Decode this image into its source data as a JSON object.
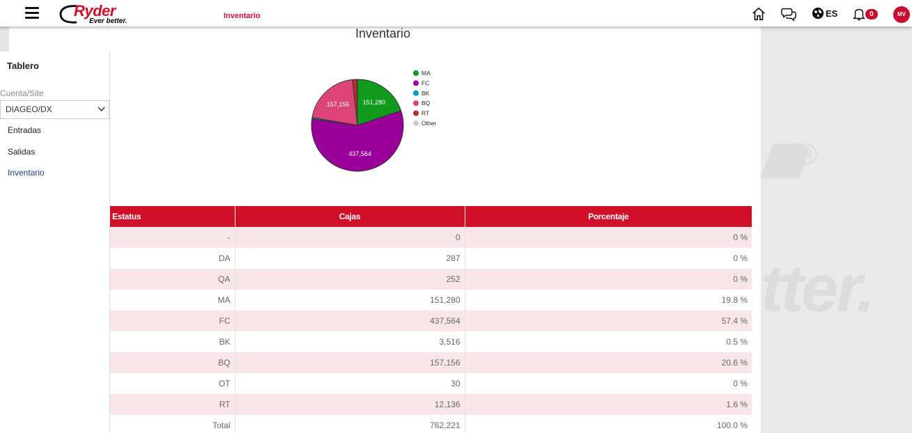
{
  "header": {
    "logo_brand": "Ryder",
    "logo_tagline": "Ever better.",
    "title": "Inventario",
    "lang": "ES",
    "notifications": "0",
    "avatar": "MV"
  },
  "page": {
    "title": "Inventario"
  },
  "sidebar": {
    "title": "Tablero",
    "account_label": "Cuenta/Site",
    "account_value": "DIAGEO/DX",
    "items": [
      {
        "label": "Entradas",
        "active": false
      },
      {
        "label": "Salidas",
        "active": false
      },
      {
        "label": "Inventario",
        "active": true
      }
    ]
  },
  "chart_data": {
    "type": "pie",
    "categories": [
      "MA",
      "FC",
      "BK",
      "BQ",
      "RT",
      "Other"
    ],
    "values": [
      151280,
      437564,
      3516,
      157156,
      12136,
      569
    ],
    "data_labels": [
      "151,280",
      "437,564",
      "",
      "157,156",
      "",
      ""
    ],
    "colors": [
      "#119a1b",
      "#990099",
      "#0099c6",
      "#dd4477",
      "#b82e2e",
      "#cccccc"
    ],
    "legend_position": "right"
  },
  "table": {
    "columns": [
      "Estatus",
      "Cajas",
      "Porcentaje"
    ],
    "rows": [
      {
        "status": "-",
        "cajas": "0",
        "pct": "0 %"
      },
      {
        "status": "DA",
        "cajas": "287",
        "pct": "0 %"
      },
      {
        "status": "QA",
        "cajas": "252",
        "pct": "0 %"
      },
      {
        "status": "MA",
        "cajas": "151,280",
        "pct": "19.8 %"
      },
      {
        "status": "FC",
        "cajas": "437,564",
        "pct": "57.4 %"
      },
      {
        "status": "BK",
        "cajas": "3,516",
        "pct": "0.5 %"
      },
      {
        "status": "BQ",
        "cajas": "157,156",
        "pct": "20.6 %"
      },
      {
        "status": "OT",
        "cajas": "30",
        "pct": "0 %"
      },
      {
        "status": "RT",
        "cajas": "12,136",
        "pct": "1.6 %"
      },
      {
        "status": "Total",
        "cajas": "762,221",
        "pct": "100.0 %"
      }
    ]
  },
  "icons": [
    "menu-icon",
    "home-icon",
    "chat-icon",
    "globe-icon",
    "bell-icon",
    "chevron-down-icon"
  ]
}
